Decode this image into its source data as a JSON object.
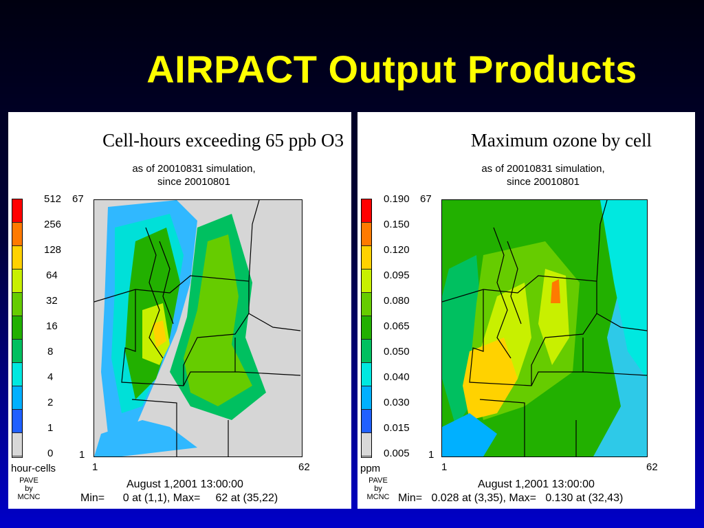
{
  "slide": {
    "title": "AIRPACT Output Products"
  },
  "panels": [
    {
      "title": "Cell-hours exceeding 65 ppb O3",
      "subtitle_line1": "as of 20010831 simulation,",
      "subtitle_line2": "since 20010801",
      "legend_ticks": [
        "512",
        "256",
        "128",
        "64",
        "32",
        "16",
        "8",
        "4",
        "2",
        "1",
        "0"
      ],
      "legend_colors": [
        "#ff0000",
        "#ff7a00",
        "#ffd200",
        "#c8f000",
        "#66cc00",
        "#22b000",
        "#00c060",
        "#00e8e0",
        "#00b0ff",
        "#2060ff",
        "#d8d8d8"
      ],
      "unit": "hour-cells",
      "axis": {
        "ymax": "67",
        "ymin": "1",
        "xmin": "1",
        "xmax": "62"
      },
      "credit": [
        "PAVE",
        "by",
        "MCNC"
      ],
      "date": "August 1,2001 13:00:00",
      "minmax": "Min=      0 at (1,1), Max=     62 at (35,22)"
    },
    {
      "title": "Maximum ozone by cell",
      "subtitle_line1": "as of 20010831 simulation,",
      "subtitle_line2": "since 20010801",
      "legend_ticks": [
        "0.190",
        "0.150",
        "0.120",
        "0.095",
        "0.080",
        "0.065",
        "0.050",
        "0.040",
        "0.030",
        "0.015",
        "0.005"
      ],
      "legend_colors": [
        "#ff0000",
        "#ff7a00",
        "#ffd200",
        "#c8f000",
        "#66cc00",
        "#22b000",
        "#00c060",
        "#00e8e0",
        "#00b0ff",
        "#2060ff",
        "#d8d8d8"
      ],
      "unit": "ppm",
      "axis": {
        "ymax": "67",
        "ymin": "1",
        "xmin": "1",
        "xmax": "62"
      },
      "credit": [
        "PAVE",
        "by",
        "MCNC"
      ],
      "date": "August 1,2001 13:00:00",
      "minmax": "Min=   0.028 at (3,35), Max=   0.130 at (32,43)"
    }
  ]
}
